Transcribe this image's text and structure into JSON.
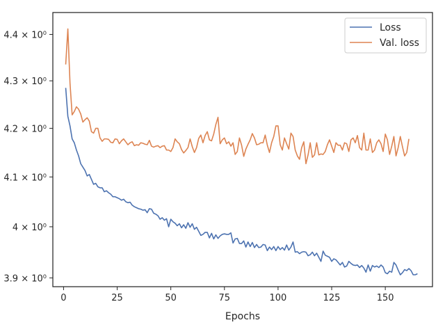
{
  "chart_data": {
    "type": "line",
    "title": "",
    "xlabel": "Epochs",
    "ylabel": "",
    "y_scale": "log",
    "xlim": [
      -5,
      172
    ],
    "ylim": [
      3.883,
      4.448
    ],
    "x_ticks": [
      0,
      25,
      50,
      75,
      100,
      125,
      150
    ],
    "x_tick_labels": [
      "0",
      "25",
      "50",
      "75",
      "100",
      "125",
      "150"
    ],
    "y_ticks": [
      3.9,
      4.0,
      4.1,
      4.2,
      4.3,
      4.4
    ],
    "y_tick_labels": [
      "3.9 × 10⁰",
      "4 × 10⁰",
      "4.1 × 10⁰",
      "4.2 × 10⁰",
      "4.3 × 10⁰",
      "4.4 × 10⁰"
    ],
    "grid": false,
    "legend_position": "top-right",
    "series": [
      {
        "name": "Loss",
        "color": "#4c72b0",
        "x_start": 1,
        "values": [
          4.285,
          4.225,
          4.205,
          4.178,
          4.17,
          4.155,
          4.143,
          4.127,
          4.12,
          4.113,
          4.102,
          4.105,
          4.095,
          4.085,
          4.087,
          4.08,
          4.078,
          4.078,
          4.07,
          4.072,
          4.068,
          4.065,
          4.06,
          4.06,
          4.058,
          4.056,
          4.053,
          4.055,
          4.05,
          4.048,
          4.049,
          4.043,
          4.04,
          4.038,
          4.036,
          4.035,
          4.033,
          4.034,
          4.028,
          4.036,
          4.035,
          4.027,
          4.025,
          4.022,
          4.015,
          4.018,
          4.013,
          4.016,
          4.0,
          4.015,
          4.01,
          4.007,
          4.002,
          4.006,
          3.998,
          4.004,
          3.997,
          4.008,
          3.999,
          4.006,
          3.995,
          3.999,
          3.991,
          3.983,
          3.985,
          3.989,
          3.989,
          3.978,
          3.987,
          3.976,
          3.984,
          3.977,
          3.982,
          3.985,
          3.986,
          3.985,
          3.985,
          3.988,
          3.968,
          3.976,
          3.977,
          3.967,
          3.967,
          3.972,
          3.96,
          3.97,
          3.961,
          3.969,
          3.959,
          3.965,
          3.959,
          3.96,
          3.965,
          3.964,
          3.953,
          3.96,
          3.955,
          3.961,
          3.953,
          3.961,
          3.955,
          3.959,
          3.954,
          3.964,
          3.954,
          3.96,
          3.97,
          3.95,
          3.951,
          3.947,
          3.95,
          3.951,
          3.95,
          3.943,
          3.945,
          3.95,
          3.943,
          3.948,
          3.94,
          3.932,
          3.952,
          3.944,
          3.942,
          3.94,
          3.932,
          3.937,
          3.935,
          3.93,
          3.925,
          3.93,
          3.921,
          3.923,
          3.932,
          3.928,
          3.925,
          3.924,
          3.925,
          3.92,
          3.924,
          3.919,
          3.911,
          3.925,
          3.913,
          3.924,
          3.921,
          3.923,
          3.92,
          3.925,
          3.921,
          3.91,
          3.908,
          3.913,
          3.911,
          3.93,
          3.925,
          3.915,
          3.906,
          3.91,
          3.916,
          3.914,
          3.918,
          3.914,
          3.906,
          3.906,
          3.908
        ]
      },
      {
        "name": "Val. loss",
        "color": "#dd8452",
        "x_start": 1,
        "values": [
          4.335,
          4.412,
          4.295,
          4.228,
          4.235,
          4.245,
          4.24,
          4.23,
          4.213,
          4.218,
          4.222,
          4.215,
          4.193,
          4.19,
          4.2,
          4.2,
          4.18,
          4.173,
          4.178,
          4.178,
          4.177,
          4.171,
          4.17,
          4.178,
          4.177,
          4.168,
          4.174,
          4.178,
          4.172,
          4.166,
          4.17,
          4.172,
          4.164,
          4.166,
          4.165,
          4.17,
          4.169,
          4.167,
          4.166,
          4.175,
          4.163,
          4.161,
          4.163,
          4.164,
          4.16,
          4.163,
          4.164,
          4.155,
          4.155,
          4.152,
          4.16,
          4.178,
          4.172,
          4.168,
          4.156,
          4.149,
          4.154,
          4.16,
          4.178,
          4.162,
          4.15,
          4.16,
          4.179,
          4.186,
          4.17,
          4.185,
          4.193,
          4.176,
          4.174,
          4.188,
          4.208,
          4.223,
          4.168,
          4.176,
          4.18,
          4.168,
          4.172,
          4.163,
          4.17,
          4.146,
          4.152,
          4.18,
          4.165,
          4.142,
          4.157,
          4.167,
          4.176,
          4.189,
          4.18,
          4.166,
          4.167,
          4.17,
          4.17,
          4.186,
          4.165,
          4.15,
          4.17,
          4.183,
          4.205,
          4.205,
          4.166,
          4.155,
          4.18,
          4.168,
          4.157,
          4.19,
          4.183,
          4.155,
          4.143,
          4.136,
          4.16,
          4.172,
          4.127,
          4.145,
          4.17,
          4.14,
          4.145,
          4.17,
          4.145,
          4.147,
          4.146,
          4.152,
          4.166,
          4.176,
          4.163,
          4.15,
          4.17,
          4.165,
          4.165,
          4.155,
          4.17,
          4.168,
          4.152,
          4.176,
          4.18,
          4.17,
          4.185,
          4.16,
          4.155,
          4.19,
          4.155,
          4.155,
          4.178,
          4.15,
          4.155,
          4.17,
          4.176,
          4.168,
          4.152,
          4.188,
          4.176,
          4.146,
          4.163,
          4.183,
          4.143,
          4.16,
          4.183,
          4.162,
          4.143,
          4.15,
          4.178
        ]
      }
    ]
  }
}
